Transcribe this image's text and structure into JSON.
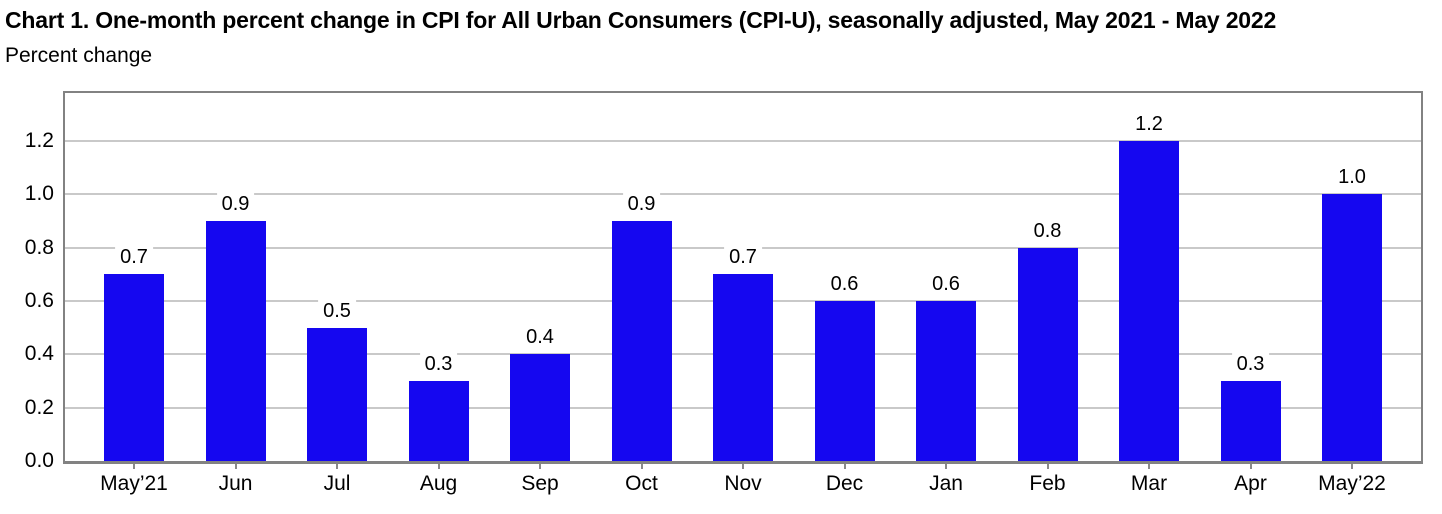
{
  "chart_data": {
    "type": "bar",
    "title": "Chart 1. One-month percent change in CPI for All Urban Consumers (CPI-U), seasonally adjusted, May 2021 - May 2022",
    "ylabel": "Percent change",
    "xlabel": "",
    "categories": [
      "May’21",
      "Jun",
      "Jul",
      "Aug",
      "Sep",
      "Oct",
      "Nov",
      "Dec",
      "Jan",
      "Feb",
      "Mar",
      "Apr",
      "May’22"
    ],
    "values": [
      0.7,
      0.9,
      0.5,
      0.3,
      0.4,
      0.9,
      0.7,
      0.6,
      0.6,
      0.8,
      1.2,
      0.3,
      1.0
    ],
    "value_labels": [
      "0.7",
      "0.9",
      "0.5",
      "0.3",
      "0.4",
      "0.9",
      "0.7",
      "0.6",
      "0.6",
      "0.8",
      "1.2",
      "0.3",
      "1.0"
    ],
    "y_ticks": [
      "0.0",
      "0.2",
      "0.4",
      "0.6",
      "0.8",
      "1.0",
      "1.2"
    ],
    "ylim": [
      0,
      1.38
    ],
    "grid": true,
    "legend": false,
    "colors": {
      "bar": "#1507f0",
      "gridline": "#c9c9c9",
      "plot_border": "#828282",
      "text": "#000000",
      "background": "#ffffff"
    }
  }
}
